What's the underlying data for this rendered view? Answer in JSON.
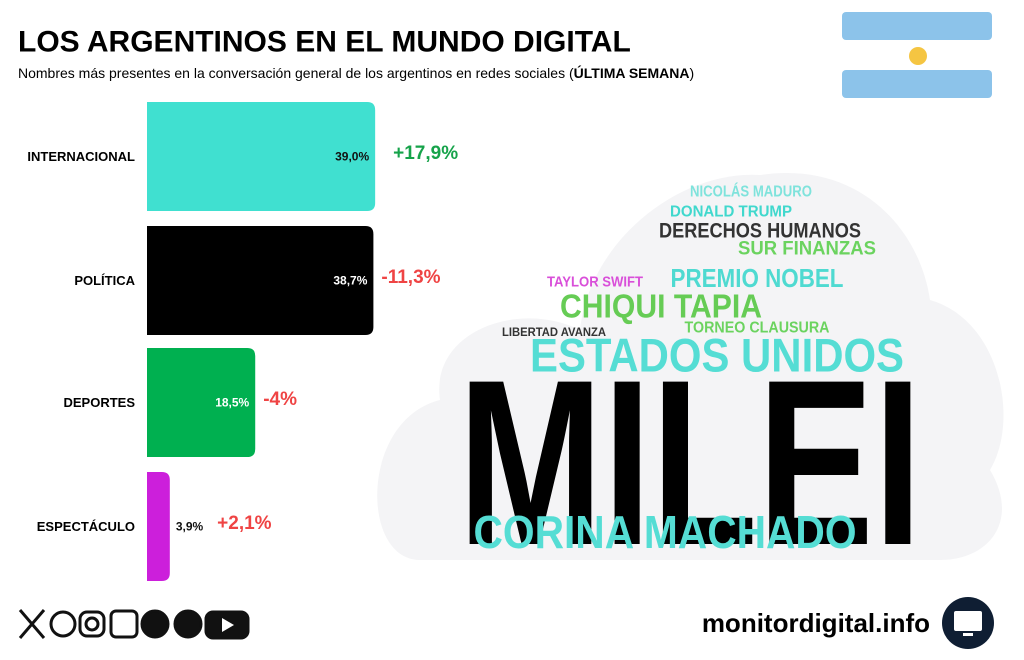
{
  "chart_data": {
    "type": "bar",
    "orientation": "horizontal",
    "title": "LOS ARGENTINOS EN EL MUNDO DIGITAL",
    "subtitle": [
      "Nombres más presentes en la conversación general de los argentinos en redes sociales (",
      "ÚLTIMA SEMANA",
      ")"
    ],
    "categories": [
      "INTERNACIONAL",
      "POLÍTICA",
      "DEPORTES",
      "ESPECTÁCULO"
    ],
    "values": [
      39.0,
      38.7,
      18.5,
      3.9
    ],
    "value_labels": [
      "39,0%",
      "38,7%",
      "18,5%",
      "3,9%"
    ],
    "colors": [
      "#40e0d0",
      "#000000",
      "#00b050",
      "#cc1fdb"
    ],
    "change_labels": [
      "+17,9%",
      "-11,3%",
      "-4%",
      "+2,1%"
    ],
    "change_colors": [
      "#16a34a",
      "#ef4444",
      "#ef4444",
      "#ef4444"
    ],
    "xlim": [
      0,
      40
    ],
    "words": [
      {
        "text": "NICOLÁS MADURO",
        "color": "#7fe3dc"
      },
      {
        "text": "DONALD TRUMP",
        "color": "#40d8cd"
      },
      {
        "text": "DERECHOS HUMANOS",
        "color": "#333333"
      },
      {
        "text": "SUR FINANZAS",
        "color": "#6bd35f"
      },
      {
        "text": "TAYLOR SWIFT",
        "color": "#d94fd9"
      },
      {
        "text": "PREMIO NOBEL",
        "color": "#4fdad1"
      },
      {
        "text": "CHIQUI TAPIA",
        "color": "#66cc55"
      },
      {
        "text": "TORNEO CLAUSURA",
        "color": "#6bd35f"
      },
      {
        "text": "LIBERTAD AVANZA",
        "color": "#333333"
      },
      {
        "text": "ESTADOS UNIDOS",
        "color": "#55ddd4"
      },
      {
        "text": "MILEI",
        "color": "#000000"
      },
      {
        "text": "CORINA MACHADO",
        "color": "#55ddd4"
      }
    ],
    "footer": "monitordigital.info"
  }
}
